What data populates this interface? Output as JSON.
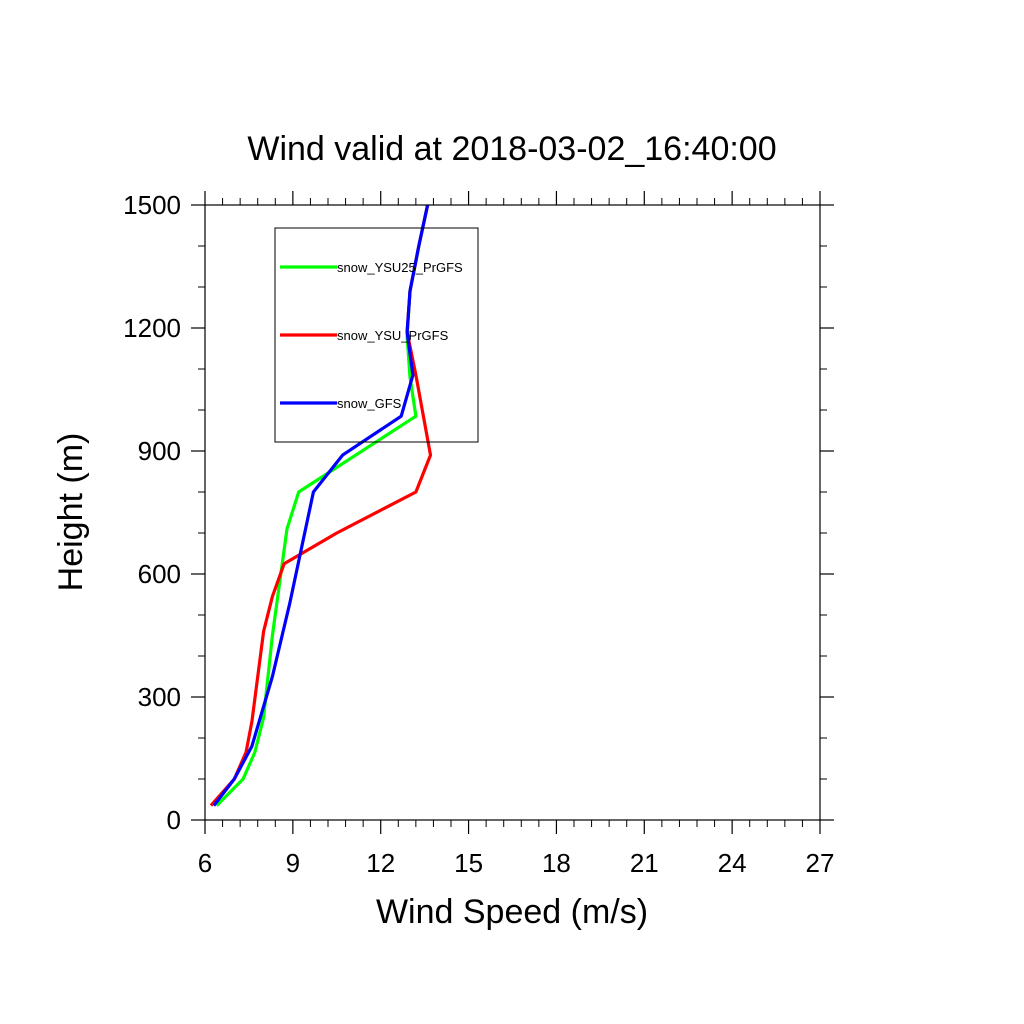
{
  "chart_data": {
    "type": "line",
    "title": "Wind valid at 2018-03-02_16:40:00",
    "xlabel": "Wind Speed (m/s)",
    "ylabel": "Height (m)",
    "xlim": [
      6,
      27
    ],
    "ylim": [
      0,
      1500
    ],
    "xticks": [
      6,
      9,
      12,
      15,
      18,
      21,
      24,
      27
    ],
    "yticks": [
      0,
      300,
      600,
      900,
      1200,
      1500
    ],
    "legend_position": "top-left inside",
    "grid": false,
    "series": [
      {
        "name": "snow_YSU25_PrGFS",
        "color": "#00ff00",
        "x": [
          6.4,
          7.3,
          7.7,
          8.0,
          8.3,
          8.8,
          9.2,
          13.2,
          13.0,
          12.9,
          13.0,
          13.3,
          13.6
        ],
        "y": [
          35,
          100,
          165,
          250,
          450,
          710,
          800,
          985,
          1080,
          1180,
          1290,
          1400,
          1500
        ]
      },
      {
        "name": "snow_YSU_PrGFS",
        "color": "#ff0000",
        "x": [
          6.2,
          7.0,
          7.4,
          7.6,
          8.0,
          8.3,
          8.7,
          10.5,
          13.2,
          13.7,
          13.2,
          12.9,
          13.0,
          13.3,
          13.6
        ],
        "y": [
          35,
          100,
          165,
          240,
          460,
          545,
          625,
          700,
          800,
          890,
          1085,
          1190,
          1290,
          1400,
          1500
        ]
      },
      {
        "name": "snow_GFS",
        "color": "#0000ff",
        "x": [
          6.3,
          7.0,
          7.6,
          8.3,
          8.9,
          9.7,
          10.7,
          12.7,
          13.1,
          12.9,
          13.0,
          13.3,
          13.6
        ],
        "y": [
          35,
          100,
          180,
          350,
          530,
          800,
          890,
          985,
          1085,
          1190,
          1290,
          1400,
          1500
        ]
      }
    ]
  }
}
